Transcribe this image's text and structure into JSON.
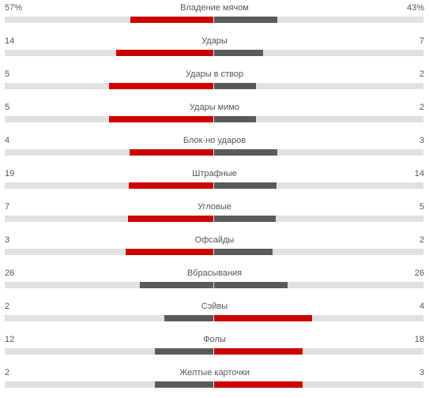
{
  "colors": {
    "leading": "#cc0000",
    "trailing": "#5a5a5a",
    "track": "#e1e1e1"
  },
  "stats": [
    {
      "label": "Владение мячом",
      "home": "57%",
      "away": "43%",
      "home_share": 0.57,
      "away_share": 0.43
    },
    {
      "label": "Удары",
      "home": "14",
      "away": "7",
      "home_share": 0.667,
      "away_share": 0.333
    },
    {
      "label": "Удары в створ",
      "home": "5",
      "away": "2",
      "home_share": 0.714,
      "away_share": 0.286
    },
    {
      "label": "Удары мимо",
      "home": "5",
      "away": "2",
      "home_share": 0.714,
      "away_share": 0.286
    },
    {
      "label": "Блок-но ударов",
      "home": "4",
      "away": "3",
      "home_share": 0.571,
      "away_share": 0.429
    },
    {
      "label": "Штрафные",
      "home": "19",
      "away": "14",
      "home_share": 0.576,
      "away_share": 0.424
    },
    {
      "label": "Угловые",
      "home": "7",
      "away": "5",
      "home_share": 0.583,
      "away_share": 0.417
    },
    {
      "label": "Офсайды",
      "home": "3",
      "away": "2",
      "home_share": 0.6,
      "away_share": 0.4
    },
    {
      "label": "Вбрасывания",
      "home": "26",
      "away": "26",
      "home_share": 0.5,
      "away_share": 0.5
    },
    {
      "label": "Сэйвы",
      "home": "2",
      "away": "4",
      "home_share": 0.333,
      "away_share": 0.667
    },
    {
      "label": "Фолы",
      "home": "12",
      "away": "18",
      "home_share": 0.4,
      "away_share": 0.6
    },
    {
      "label": "Желтые карточки",
      "home": "2",
      "away": "3",
      "home_share": 0.4,
      "away_share": 0.6
    }
  ]
}
